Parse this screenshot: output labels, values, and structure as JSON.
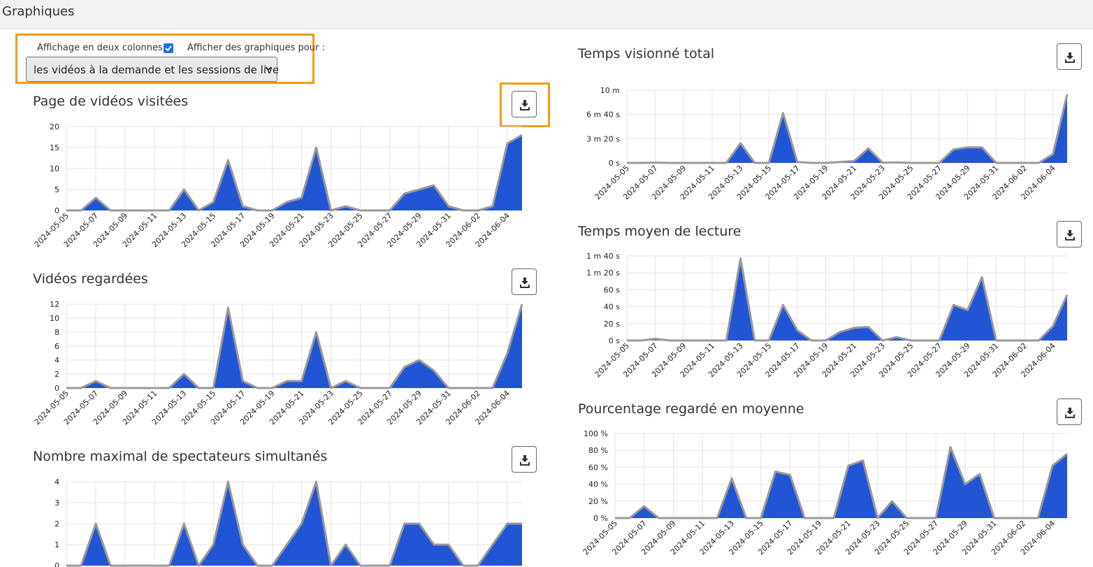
{
  "page": {
    "title": "Graphiques"
  },
  "controls": {
    "two_columns_label": "Affichage en deux colonnes :",
    "two_columns_checked": true,
    "show_for_label": "Afficher des graphiques pour :",
    "show_for_value": "les vidéos à la demande et les sessions de live"
  },
  "icons": {
    "download": "download-icon",
    "checkbox": "checkmark-icon",
    "select": "chevron-down-icon"
  },
  "colors": {
    "fill": "#2255d4",
    "stroke": "#999999",
    "highlight": "#f39c12"
  },
  "chart_data": [
    {
      "id": "page-visits",
      "type": "area",
      "title": "Page de vidéos visitées",
      "x_labels": [
        "2024-05-05",
        "2024-05-07",
        "2024-05-09",
        "2024-05-11",
        "2024-05-13",
        "2024-05-15",
        "2024-05-17",
        "2024-05-19",
        "2024-05-21",
        "2024-05-23",
        "2024-05-25",
        "2024-05-27",
        "2024-05-29",
        "2024-05-31",
        "2024-06-02",
        "2024-06-04"
      ],
      "values": [
        0,
        0,
        3,
        0,
        0,
        0,
        0,
        0,
        5,
        0,
        2,
        12,
        1,
        0,
        0,
        2,
        3,
        15,
        0,
        1,
        0,
        0,
        0,
        4,
        5,
        6,
        1,
        0,
        0,
        1,
        16,
        18
      ],
      "y_ticks": [
        "0",
        "5",
        "10",
        "15",
        "20"
      ],
      "ylim": [
        0,
        20
      ]
    },
    {
      "id": "videos-watched",
      "type": "area",
      "title": "Vidéos regardées",
      "x_labels": [
        "2024-05-05",
        "2024-05-07",
        "2024-05-09",
        "2024-05-11",
        "2024-05-13",
        "2024-05-15",
        "2024-05-17",
        "2024-05-19",
        "2024-05-21",
        "2024-05-23",
        "2024-05-25",
        "2024-05-27",
        "2024-05-29",
        "2024-05-31",
        "2024-06-02",
        "2024-06-04"
      ],
      "values": [
        0,
        0,
        1,
        0,
        0,
        0,
        0,
        0,
        2,
        0,
        0,
        11.5,
        1,
        0,
        0,
        1,
        1,
        8,
        0,
        1,
        0,
        0,
        0,
        3,
        4,
        2.5,
        0,
        0,
        0,
        0,
        5,
        12
      ],
      "y_ticks": [
        "0",
        "2",
        "4",
        "6",
        "8",
        "10",
        "12"
      ],
      "ylim": [
        0,
        12
      ]
    },
    {
      "id": "max-viewers",
      "type": "area",
      "title": "Nombre maximal de spectateurs simultanés",
      "x_labels": [],
      "values": [
        0,
        0,
        2,
        0,
        0,
        0,
        0,
        0,
        2,
        0,
        1,
        4,
        1,
        0,
        0,
        1,
        2,
        4,
        0,
        1,
        0,
        0,
        0,
        2,
        2,
        1,
        1,
        0,
        0,
        1,
        2,
        2
      ],
      "y_ticks": [
        "0",
        "1",
        "2",
        "3",
        "4"
      ],
      "ylim": [
        0,
        4
      ]
    },
    {
      "id": "total-watch-time",
      "type": "area",
      "title": "Temps visionné total",
      "x_labels": [
        "2024-05-05",
        "2024-05-07",
        "2024-05-09",
        "2024-05-11",
        "2024-05-13",
        "2024-05-15",
        "2024-05-17",
        "2024-05-19",
        "2024-05-21",
        "2024-05-23",
        "2024-05-25",
        "2024-05-27",
        "2024-05-29",
        "2024-05-31",
        "2024-06-02",
        "2024-06-04"
      ],
      "values": [
        0,
        0,
        3,
        0,
        0,
        0,
        0,
        0,
        190,
        0,
        0,
        480,
        8,
        0,
        0,
        8,
        18,
        140,
        3,
        5,
        0,
        0,
        0,
        130,
        150,
        150,
        0,
        0,
        0,
        0,
        85,
        660
      ],
      "y_ticks": [
        "0 s",
        "3 m 20 s",
        "6 m 40 s",
        "10 m"
      ],
      "ylim": [
        0,
        700
      ]
    },
    {
      "id": "avg-watch-time",
      "type": "area",
      "title": "Temps moyen de lecture",
      "x_labels": [
        "2024-05-05",
        "2024-05-07",
        "2024-05-09",
        "2024-05-11",
        "2024-05-13",
        "2024-05-15",
        "2024-05-17",
        "2024-05-19",
        "2024-05-21",
        "2024-05-23",
        "2024-05-25",
        "2024-05-27",
        "2024-05-29",
        "2024-05-31",
        "2024-06-02",
        "2024-06-04"
      ],
      "values": [
        0,
        0,
        2,
        0,
        0,
        0,
        0,
        0,
        97,
        0,
        0,
        42,
        12,
        0,
        0,
        10,
        15,
        16,
        0,
        4,
        0,
        0,
        0,
        42,
        36,
        75,
        0,
        0,
        0,
        0,
        17,
        54
      ],
      "y_ticks": [
        "0 s",
        "20 s",
        "40 s",
        "60 s",
        "1 m 20 s",
        "1 m 40 s"
      ],
      "ylim": [
        0,
        100
      ]
    },
    {
      "id": "avg-percent-watched",
      "type": "area",
      "title": "Pourcentage regardé en moyenne",
      "x_labels": [
        "2024-05-05",
        "2024-05-07",
        "2024-05-09",
        "2024-05-11",
        "2024-05-13",
        "2024-05-15",
        "2024-05-17",
        "2024-05-19",
        "2024-05-21",
        "2024-05-23",
        "2024-05-25",
        "2024-05-27",
        "2024-05-29",
        "2024-05-31",
        "2024-06-02",
        "2024-06-04"
      ],
      "values": [
        0,
        0,
        14,
        0,
        0,
        0,
        0,
        0,
        47,
        0,
        0,
        55,
        51,
        0,
        0,
        0,
        62,
        68,
        0,
        20,
        0,
        0,
        0,
        84,
        40,
        52,
        0,
        0,
        0,
        0,
        62,
        76
      ],
      "y_ticks": [
        "0 %",
        "20 %",
        "40 %",
        "60 %",
        "80 %",
        "100 %"
      ],
      "ylim": [
        0,
        100
      ]
    }
  ]
}
